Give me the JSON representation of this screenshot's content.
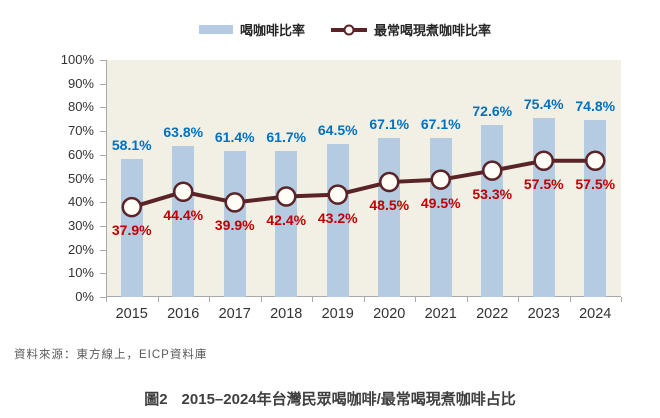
{
  "figure": {
    "source_note": "資料來源：東方線上，EICP資料庫",
    "caption_label": "圖2",
    "caption_text": "2015–2024年台灣民眾喝咖啡/最常喝現煮咖啡占比"
  },
  "chart_data": {
    "type": "combo",
    "categories": [
      "2015",
      "2016",
      "2017",
      "2018",
      "2019",
      "2020",
      "2021",
      "2022",
      "2023",
      "2024"
    ],
    "series": [
      {
        "name": "喝咖啡比率",
        "type": "bar",
        "values": [
          58.1,
          63.8,
          61.4,
          61.7,
          64.5,
          67.1,
          67.1,
          72.6,
          75.4,
          74.8
        ],
        "color": "#b5cbe2",
        "label_color": "#0070c0"
      },
      {
        "name": "最常喝現煮咖啡比率",
        "type": "line",
        "values": [
          37.9,
          44.4,
          39.9,
          42.4,
          43.2,
          48.5,
          49.5,
          53.3,
          57.5,
          57.5
        ],
        "color": "#5a2327",
        "marker_fill": "#fffdf6",
        "label_color": "#c00000"
      }
    ],
    "ylim": [
      0,
      100
    ],
    "y_tick_step": 10,
    "y_tick_suffix": "%",
    "value_suffix": "%",
    "grid": false,
    "legend_position": "top",
    "plot_background": "#f2f0e5",
    "axis_color": "#a9a9a9"
  }
}
